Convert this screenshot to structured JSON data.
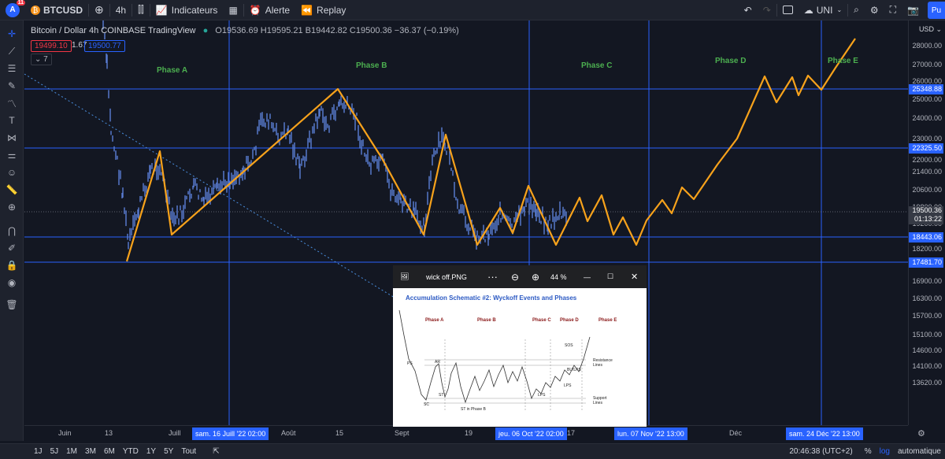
{
  "toolbar": {
    "avatar_letter": "A",
    "notifications": "11",
    "symbol": "BTCUSD",
    "interval": "4h",
    "indicators_label": "Indicateurs",
    "alert_label": "Alerte",
    "replay_label": "Replay",
    "layout_name": "UNI",
    "publish_label": "Pu"
  },
  "legend": {
    "title": "Bitcoin / Dollar  4h  COINBASE  TradingView",
    "ohlc": "O19536.69 H19595.21 B19442.82 C19500.36 −36.37 (−0.19%)",
    "sell_price": "19499.10",
    "spread": "1.67",
    "buy_price": "19500.77",
    "collapse_count": "7"
  },
  "phases": [
    "Phase A",
    "Phase B",
    "Phase C",
    "Phase D",
    "Phase E"
  ],
  "price_axis": {
    "currency": "USD",
    "ticks": [
      "28000.00",
      "27000.00",
      "26000.00",
      "25000.00",
      "24000.00",
      "23000.00",
      "22000.00",
      "21400.00",
      "20600.00",
      "19800.00",
      "19200.00",
      "18200.00",
      "16900.00",
      "16300.00",
      "15700.00",
      "15100.00",
      "14600.00",
      "14100.00",
      "13620.00"
    ],
    "level_labels": [
      "25348.88",
      "22325.50",
      "18443.06",
      "17481.70"
    ],
    "current_price": "19500.36",
    "countdown": "01:13:22"
  },
  "time_axis": {
    "ticks": [
      "Juin",
      "13",
      "Juill",
      "Août",
      "15",
      "Sept",
      "19",
      "17",
      "Déc"
    ],
    "highlighted": [
      "sam. 16 Juill '22   02:00",
      "jeu. 06 Oct '22   02:00",
      "lun. 07 Nov '22   13:00",
      "sam. 24 Déc '22   13:00"
    ]
  },
  "bottombar": {
    "ranges": [
      "1J",
      "5J",
      "1M",
      "3M",
      "6M",
      "YTD",
      "1Y",
      "5Y",
      "Tout"
    ],
    "clock": "20:46:38 (UTC+2)",
    "percent": "%",
    "log": "log",
    "auto": "automatique"
  },
  "viewer": {
    "filename": "wick off.PNG",
    "zoom": "44 %",
    "title": "Accumulation Schematic #2: Wyckoff Events and Phases",
    "phases": [
      "Phase A",
      "Phase B",
      "Phase C",
      "Phase D",
      "Phase E"
    ],
    "events": [
      "PS",
      "SC",
      "AR",
      "ST",
      "ST in Phase B",
      "LPS",
      "LPS",
      "SOS",
      "BU/LPS",
      "LPS"
    ],
    "resistance_label": "Resistance Lines",
    "support_label": "Support Lines"
  },
  "colors": {
    "background": "#131722",
    "level_line": "#2962ff",
    "projection": "#f7a21b",
    "candles": "#5b7fd6",
    "phase_text": "#4caf50"
  }
}
